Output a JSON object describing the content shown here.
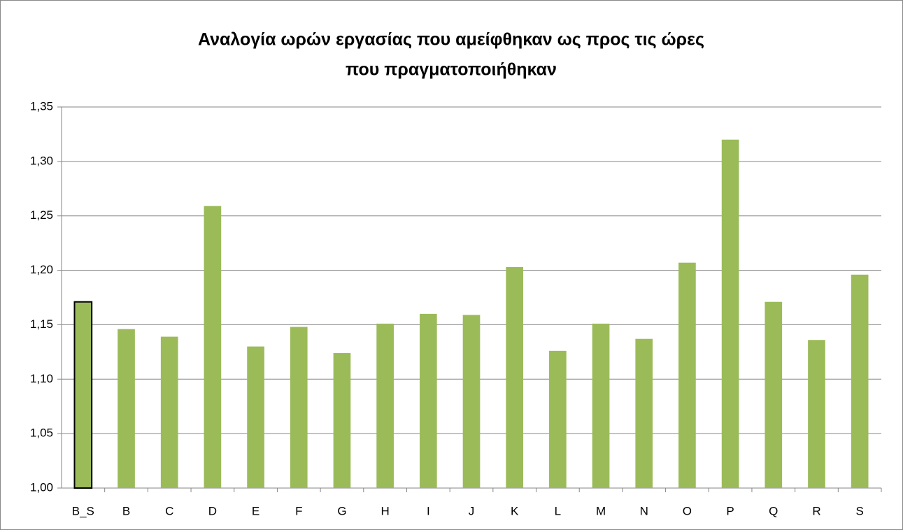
{
  "chart_data": {
    "type": "bar",
    "title": [
      "Αναλογία ωρών εργασίας που αμείφθηκαν ως προς τις ώρες",
      "που πραγματοποιήθηκαν"
    ],
    "categories": [
      "B_S",
      "B",
      "C",
      "D",
      "E",
      "F",
      "G",
      "H",
      "I",
      "J",
      "K",
      "L",
      "M",
      "N",
      "O",
      "P",
      "Q",
      "R",
      "S"
    ],
    "values": [
      1.171,
      1.146,
      1.139,
      1.259,
      1.13,
      1.148,
      1.124,
      1.151,
      1.16,
      1.159,
      1.203,
      1.126,
      1.151,
      1.137,
      1.207,
      1.32,
      1.171,
      1.136,
      1.196
    ],
    "color": "#9bbb59",
    "highlight": {
      "index": 0,
      "stroke": "#000000"
    },
    "ylim": [
      1.0,
      1.35
    ],
    "yticks": [
      {
        "value": 1.0,
        "label": "1,00"
      },
      {
        "value": 1.05,
        "label": "1,05"
      },
      {
        "value": 1.1,
        "label": "1,10"
      },
      {
        "value": 1.15,
        "label": "1,15"
      },
      {
        "value": 1.2,
        "label": "1,20"
      },
      {
        "value": 1.25,
        "label": "1,25"
      },
      {
        "value": 1.3,
        "label": "1,30"
      },
      {
        "value": 1.35,
        "label": "1,35"
      }
    ],
    "grid": true
  }
}
